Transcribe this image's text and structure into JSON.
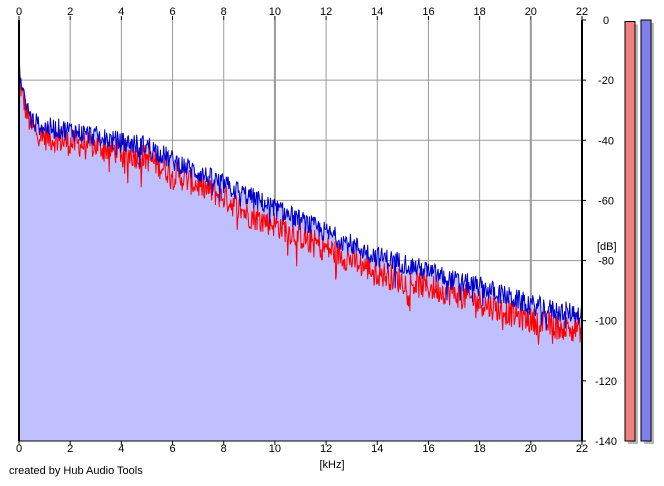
{
  "credit": "created by Hub Audio Tools",
  "colors": {
    "background": "#ffffff",
    "fill": "#c0c0ff",
    "grid": "#9a9a9a",
    "left_channel": "#ff0000",
    "right_channel": "#0000cc",
    "meter_left": "#f08080",
    "meter_right": "#8080f0"
  },
  "chart_data": {
    "type": "line",
    "title": "",
    "xlabel": "[kHz]",
    "ylabel": "[dB]",
    "xlim": [
      0,
      22
    ],
    "ylim": [
      -140,
      0
    ],
    "x_ticks": [
      "0",
      "2",
      "4",
      "6",
      "8",
      "10",
      "12",
      "14",
      "16",
      "18",
      "20",
      "22"
    ],
    "y_ticks": [
      "0",
      "-20",
      "-40",
      "-60",
      "-80",
      "-100",
      "-120",
      "-140"
    ],
    "grid": true,
    "legend": "none",
    "x": [
      0,
      0.1,
      0.3,
      0.5,
      1,
      2,
      3,
      4,
      5,
      6,
      7,
      8,
      9,
      10,
      11,
      12,
      13,
      14,
      15,
      16,
      17,
      18,
      19,
      20,
      21,
      22
    ],
    "series": [
      {
        "color": "#ff0000",
        "values": [
          -17,
          -23,
          -30,
          -35,
          -38,
          -40,
          -41,
          -43,
          -45,
          -50,
          -54,
          -58,
          -64,
          -67,
          -71,
          -75,
          -79,
          -83,
          -86,
          -88,
          -90,
          -93,
          -96,
          -99,
          -101,
          -102
        ]
      },
      {
        "color": "#0000cc",
        "values": [
          -16,
          -21,
          -28,
          -33,
          -35,
          -36,
          -38,
          -40,
          -41,
          -46,
          -50,
          -54,
          -58,
          -62,
          -66,
          -70,
          -74,
          -78,
          -80,
          -83,
          -86,
          -88,
          -91,
          -94,
          -96,
          -97
        ]
      }
    ],
    "meters": [
      {
        "color": "#f08080",
        "value": -0.5
      },
      {
        "color": "#8080f0",
        "value": 0
      }
    ]
  }
}
